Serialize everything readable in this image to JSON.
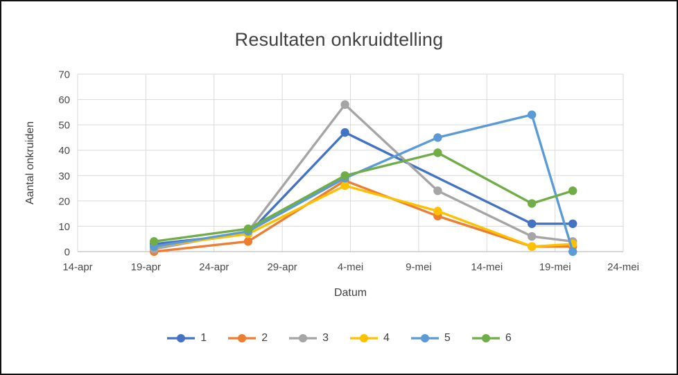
{
  "chart_data": {
    "type": "line",
    "title": "Resultaten onkruidtelling",
    "xlabel": "Datum",
    "ylabel": "Aantal onkruiden",
    "x_tick_labels": [
      "14-apr",
      "19-apr",
      "24-apr",
      "29-apr",
      "4-mei",
      "9-mei",
      "14-mei",
      "19-mei",
      "24-mei"
    ],
    "x_tick_days": [
      0,
      5,
      10,
      15,
      20,
      25,
      30,
      35,
      40
    ],
    "xlim": [
      0,
      40
    ],
    "y_ticks": [
      0,
      10,
      20,
      30,
      40,
      50,
      60,
      70
    ],
    "ylim": [
      0,
      70
    ],
    "grid": true,
    "legend_position": "bottom",
    "x_days": [
      5.6,
      12.5,
      19.6,
      26.4,
      33.3,
      36.3
    ],
    "series": [
      {
        "name": "1",
        "color": "#4472C4",
        "y": [
          3,
          7,
          47,
          null,
          11,
          11
        ]
      },
      {
        "name": "2",
        "color": "#ED7D31",
        "y": [
          0,
          4,
          28,
          14,
          2,
          2
        ]
      },
      {
        "name": "3",
        "color": "#A5A5A5",
        "y": [
          1,
          8,
          58,
          24,
          6,
          4
        ]
      },
      {
        "name": "4",
        "color": "#FFC000",
        "y": [
          2,
          7,
          26,
          16,
          2,
          3
        ]
      },
      {
        "name": "5",
        "color": "#5B9BD5",
        "y": [
          2,
          8,
          29,
          45,
          54,
          0
        ]
      },
      {
        "name": "6",
        "color": "#70AD47",
        "y": [
          4,
          9,
          30,
          39,
          19,
          24
        ]
      }
    ],
    "colors": {
      "gridline": "#D9D9D9",
      "axis_line": "#BFBFBF",
      "tick_text": "#494949",
      "title_text": "#404040"
    }
  }
}
